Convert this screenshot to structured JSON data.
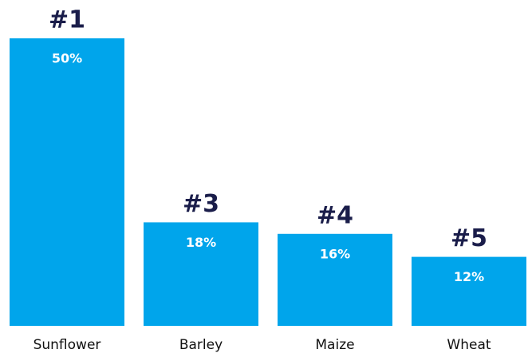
{
  "chart_data": {
    "type": "bar",
    "categories": [
      "Sunflower",
      "Barley",
      "Maize",
      "Wheat"
    ],
    "values": [
      50,
      18,
      16,
      12
    ],
    "value_labels": [
      "50%",
      "18%",
      "16%",
      "12%"
    ],
    "annotations": [
      "#1",
      "#3",
      "#4",
      "#5"
    ],
    "color": "#00a5eb"
  }
}
